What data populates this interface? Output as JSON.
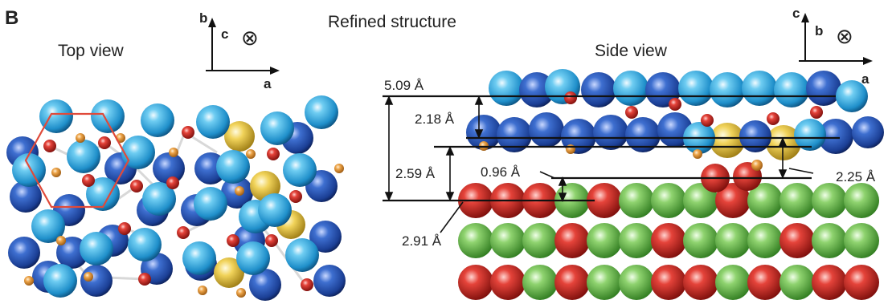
{
  "figure": {
    "panel_label": "B",
    "title": "Refined structure",
    "top_view": {
      "title": "Top view",
      "axis_b": "b",
      "axis_c": "c",
      "axis_a": "a",
      "into_page_symbol": "⊗"
    },
    "side_view": {
      "title": "Side view",
      "axis_c": "c",
      "axis_b": "b",
      "axis_a": "a",
      "into_page_symbol": "⊗",
      "distances": {
        "total": "5.09 Å",
        "upper_gap": "2.18 Å",
        "mid_gap": "2.59 Å",
        "small_gap": "0.96 Å",
        "right_gap": "2.25 Å",
        "bottom_gap": "2.91 Å"
      }
    }
  },
  "colors": {
    "light_blue_atom": "#2ea4dc",
    "dark_blue_atom": "#1e4fa8",
    "yellow_atom": "#e7c43a",
    "red_atom": "#d92b23",
    "orange_atom": "#e89a3a",
    "green_atom": "#79c45a",
    "hexagon": "#e04a3a",
    "lines": "#111111"
  }
}
